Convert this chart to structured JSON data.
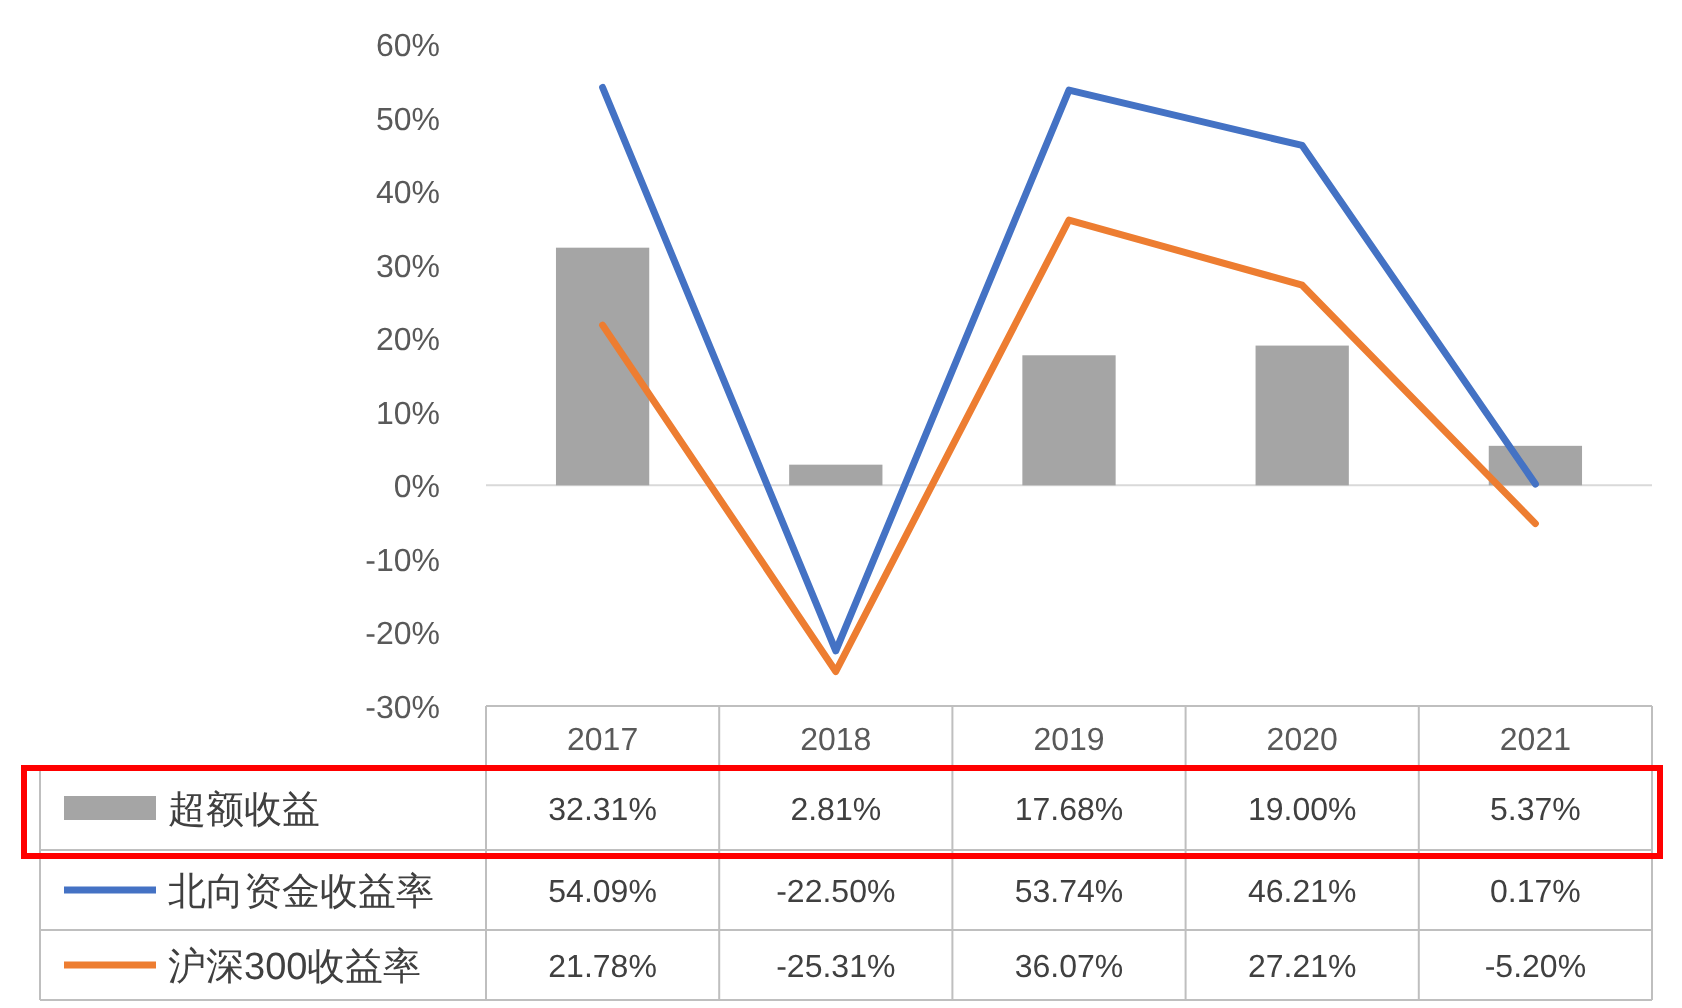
{
  "chart_data": {
    "type": "bar",
    "categories": [
      "2017",
      "2018",
      "2019",
      "2020",
      "2021"
    ],
    "ylim": [
      -30,
      60
    ],
    "yticks": [
      {
        "value": -30,
        "label": "-30%"
      },
      {
        "value": -20,
        "label": "-20%"
      },
      {
        "value": -10,
        "label": "-10%"
      },
      {
        "value": 0,
        "label": "0%"
      },
      {
        "value": 10,
        "label": "10%"
      },
      {
        "value": 20,
        "label": "20%"
      },
      {
        "value": 30,
        "label": "30%"
      },
      {
        "value": 40,
        "label": "40%"
      },
      {
        "value": 50,
        "label": "50%"
      },
      {
        "value": 60,
        "label": "60%"
      }
    ],
    "legend": "bottom",
    "series": [
      {
        "name": "超额收益",
        "color": "#a5a5a5",
        "values": [
          32.31,
          2.81,
          17.68,
          19.0,
          5.37
        ],
        "value_labels": [
          "32.31%",
          "2.81%",
          "17.68%",
          "19.00%",
          "5.37%"
        ]
      },
      {
        "name": "北向资金收益率",
        "type": "line",
        "color": "#4472c4",
        "values": [
          54.09,
          -22.5,
          53.74,
          46.21,
          0.17
        ],
        "value_labels": [
          "54.09%",
          "-22.50%",
          "53.74%",
          "46.21%",
          "0.17%"
        ]
      },
      {
        "name": "沪深300收益率",
        "type": "line",
        "color": "#ed7d31",
        "values": [
          21.78,
          -25.31,
          36.07,
          27.21,
          -5.2
        ],
        "value_labels": [
          "21.78%",
          "-25.31%",
          "36.07%",
          "27.21%",
          "-5.20%"
        ]
      }
    ]
  }
}
